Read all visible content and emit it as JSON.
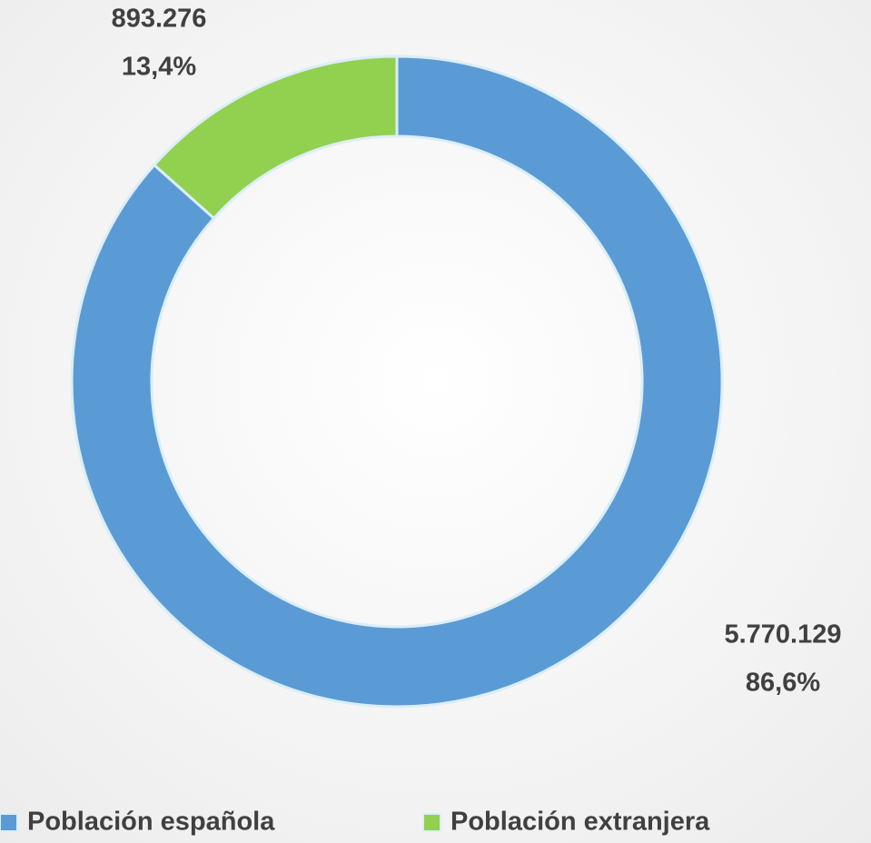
{
  "chart_data": {
    "type": "donut",
    "categories": [
      "Población española",
      "Población extranjera"
    ],
    "values": [
      5770129,
      893276
    ],
    "value_labels": [
      "5.770.129",
      "893.276"
    ],
    "percents": [
      86.6,
      13.4
    ],
    "percent_labels": [
      "86,6%",
      "13,4%"
    ],
    "colors": [
      "#5b9bd5",
      "#92d050"
    ],
    "legend": "bottom"
  }
}
